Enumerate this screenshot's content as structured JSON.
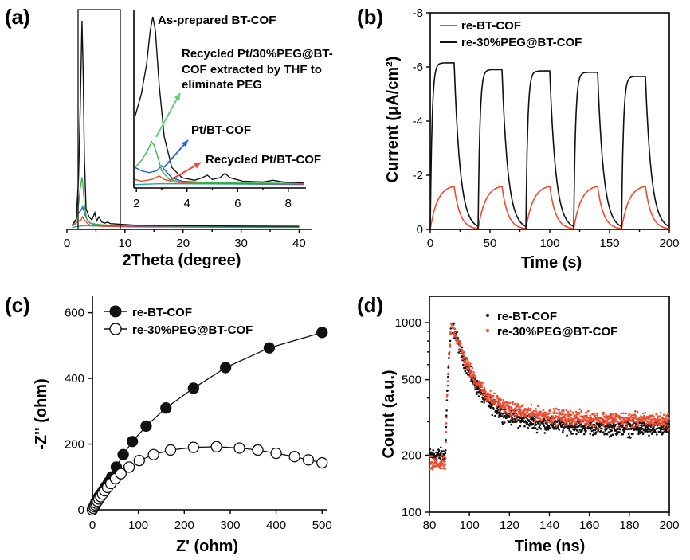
{
  "colors": {
    "black": "#111111",
    "red": "#f04a2e",
    "green": "#3cb34a",
    "blue": "#1f5fd6",
    "navy": "#1d2d6b",
    "teal": "#2aa39b",
    "arrow_green": "#5fd17a",
    "arrow_blue": "#2a64e0",
    "arrow_red": "#f04a2e"
  },
  "chart_data": [
    {
      "panel": "(a)",
      "type": "line",
      "xlabel": "2Theta (degree)",
      "ylabel": "",
      "xlim": [
        0,
        42
      ],
      "xticks": [
        0,
        10,
        20,
        30,
        40
      ],
      "grid": false,
      "series": [
        {
          "label": "As-prepared BT-COF",
          "color": "black",
          "x": [
            0.9,
            1.6,
            2.0,
            2.3,
            2.6,
            2.8,
            3.0,
            3.3,
            3.8,
            4.3,
            4.8,
            5.1,
            5.5,
            6.0,
            6.5,
            7.0,
            7.5,
            9,
            12,
            20,
            30,
            40
          ],
          "y": [
            0.02,
            0.05,
            0.25,
            0.6,
            1.0,
            0.75,
            0.35,
            0.1,
            0.06,
            0.045,
            0.08,
            0.04,
            0.06,
            0.035,
            0.03,
            0.035,
            0.028,
            0.025,
            0.02,
            0.018,
            0.016,
            0.015
          ]
        },
        {
          "label": "Recycled Pt/30%PEG@BT-COF extracted by THF to eliminate PEG",
          "color": "green",
          "x": [
            0.9,
            1.6,
            2.0,
            2.3,
            2.6,
            2.8,
            3.0,
            3.4,
            4.0,
            5.0,
            6.0,
            8,
            12,
            20,
            30,
            40
          ],
          "y": [
            0.02,
            0.04,
            0.12,
            0.2,
            0.25,
            0.2,
            0.12,
            0.05,
            0.03,
            0.025,
            0.022,
            0.02,
            0.018,
            0.016,
            0.015,
            0.014
          ]
        },
        {
          "label": "Pt/BT-COF",
          "color": "blue",
          "x": [
            0.9,
            1.6,
            2.0,
            2.4,
            2.7,
            3.0,
            3.4,
            4.0,
            5.0,
            6.0,
            8,
            12,
            20,
            30,
            40
          ],
          "y": [
            0.02,
            0.05,
            0.08,
            0.09,
            0.11,
            0.08,
            0.05,
            0.03,
            0.022,
            0.02,
            0.018,
            0.016,
            0.015,
            0.014,
            0.013
          ]
        },
        {
          "label": "Recycled Pt/BT-COF",
          "color": "red",
          "x": [
            0.9,
            1.6,
            2.0,
            2.4,
            2.7,
            3.0,
            3.5,
            4.0,
            5.0,
            6.0,
            8,
            12,
            20,
            30,
            40
          ],
          "y": [
            0.015,
            0.03,
            0.04,
            0.045,
            0.06,
            0.045,
            0.03,
            0.02,
            0.017,
            0.015,
            0.014,
            0.013,
            0.012,
            0.012,
            0.011
          ]
        },
        {
          "label": "",
          "color": "teal",
          "x": [
            0.9,
            2.0,
            3.0,
            5.0,
            8,
            12,
            20,
            30,
            40
          ],
          "y": [
            0.01,
            0.015,
            0.018,
            0.016,
            0.014,
            0.012,
            0.011,
            0.01,
            0.01
          ]
        }
      ],
      "inset": {
        "xlim": [
          1.9,
          8.7
        ],
        "xticks": [
          2,
          4,
          6,
          8
        ],
        "annotations": [
          "As-prepared BT-COF",
          "Recycled Pt/30%PEG@BT-",
          "COF extracted by THF to",
          "eliminate PEG",
          "Pt/BT-COF",
          "Recycled Pt/BT-COF"
        ]
      }
    },
    {
      "panel": "(b)",
      "type": "line",
      "xlabel": "Time (s)",
      "ylabel": "Current (μA/cm²)",
      "xlim": [
        0,
        200
      ],
      "ylim": [
        0,
        -8
      ],
      "xticks": [
        0,
        50,
        100,
        150,
        200
      ],
      "yticks": [
        0,
        -2,
        -4,
        -6,
        -8
      ],
      "legend": "top-left",
      "series": [
        {
          "name": "re-BT-COF",
          "color": "red",
          "on_cycles": [
            [
              0,
              20
            ],
            [
              40,
              60
            ],
            [
              80,
              100
            ],
            [
              120,
              140
            ],
            [
              160,
              180
            ]
          ],
          "on_current": [
            -1.65,
            -1.65,
            -1.65,
            -1.65,
            -1.65
          ]
        },
        {
          "name": "re-30%PEG@BT-COF",
          "color": "black",
          "on_cycles": [
            [
              0,
              20
            ],
            [
              40,
              60
            ],
            [
              80,
              100
            ],
            [
              120,
              140
            ],
            [
              160,
              180
            ]
          ],
          "on_current": [
            -6.15,
            -5.9,
            -5.85,
            -5.8,
            -5.65
          ]
        }
      ]
    },
    {
      "panel": "(c)",
      "type": "scatter",
      "xlabel": "Z' (ohm)",
      "ylabel": "-Z'' (ohm)",
      "xlim": [
        0,
        510
      ],
      "ylim": [
        0,
        650
      ],
      "xticks": [
        0,
        100,
        200,
        300,
        400,
        500
      ],
      "yticks": [
        0,
        200,
        400,
        600
      ],
      "legend": "top-left",
      "series": [
        {
          "name": "re-BT-COF",
          "color": "black",
          "fill": "filled",
          "x": [
            0,
            2,
            4,
            6,
            8,
            11,
            14,
            18,
            23,
            28,
            35,
            42,
            52,
            67,
            87,
            117,
            160,
            220,
            290,
            385,
            500
          ],
          "y": [
            0,
            6,
            12,
            18,
            25,
            32,
            40,
            48,
            58,
            70,
            84,
            100,
            130,
            168,
            208,
            255,
            310,
            370,
            433,
            493,
            540
          ]
        },
        {
          "name": "re-30%PEG@BT-COF",
          "color": "black",
          "fill": "open",
          "x": [
            0,
            2,
            4,
            6,
            8,
            11,
            14,
            18,
            22,
            27,
            33,
            40,
            50,
            62,
            80,
            102,
            133,
            170,
            220,
            270,
            320,
            360,
            400,
            440,
            470,
            500
          ],
          "y": [
            0,
            5,
            10,
            15,
            20,
            26,
            33,
            40,
            48,
            58,
            68,
            80,
            95,
            110,
            130,
            150,
            168,
            182,
            190,
            192,
            188,
            182,
            172,
            162,
            152,
            143
          ]
        }
      ]
    },
    {
      "panel": "(d)",
      "type": "scatter",
      "xlabel": "Time (ns)",
      "ylabel": "Count (a.u.)",
      "xlim": [
        80,
        200
      ],
      "ylim": [
        100,
        1000
      ],
      "yscale": "log",
      "xticks": [
        80,
        100,
        120,
        140,
        160,
        180,
        200
      ],
      "yticks": [
        100,
        200,
        500,
        1000
      ],
      "legend": "top-left",
      "series": [
        {
          "name": "re-BT-COF",
          "color": "black",
          "baseline": 200,
          "peak_time": 91,
          "peak": 950,
          "tail": 270
        },
        {
          "name": "re-30%PEG@BT-COF",
          "color": "red",
          "baseline": 180,
          "peak_time": 91,
          "peak": 950,
          "tail": 300
        }
      ]
    }
  ]
}
